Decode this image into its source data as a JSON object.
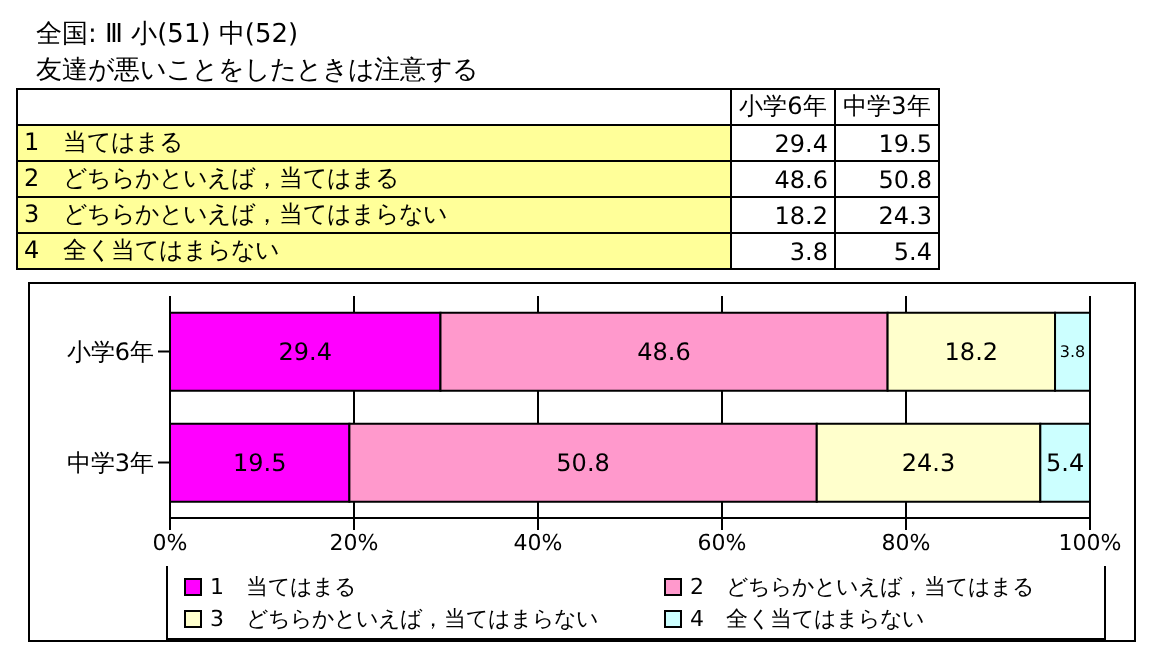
{
  "chart_data": {
    "type": "bar",
    "orientation": "horizontal",
    "stacked": true,
    "title": "全国: Ⅲ 小(51) 中(52)",
    "subtitle": "友達が悪いことをしたときは注意する",
    "categories": [
      "小学6年",
      "中学3年"
    ],
    "series": [
      {
        "name": "1　当てはまる",
        "color": "#ff00ff",
        "values": [
          29.4,
          19.5
        ]
      },
      {
        "name": "2　どちらかといえば，当てはまる",
        "color": "#ff99cc",
        "values": [
          48.6,
          50.8
        ]
      },
      {
        "name": "3　どちらかといえば，当てはまらない",
        "color": "#ffffcc",
        "values": [
          18.2,
          24.3
        ]
      },
      {
        "name": "4　全く当てはまらない",
        "color": "#ccffff",
        "values": [
          3.8,
          5.4
        ]
      }
    ],
    "xlim": [
      0,
      100
    ],
    "xticks": [
      {
        "value": 0,
        "label": "0%"
      },
      {
        "value": 20,
        "label": "20%"
      },
      {
        "value": 40,
        "label": "40%"
      },
      {
        "value": 60,
        "label": "60%"
      },
      {
        "value": 80,
        "label": "80%"
      },
      {
        "value": 100,
        "label": "100%"
      }
    ],
    "grid": "x",
    "legend": "bottom",
    "data_labels": true,
    "annotations": [
      "29.4",
      "19.5",
      "48.6",
      "50.8",
      "18.2",
      "24.3",
      "3.8",
      "5.4"
    ]
  }
}
